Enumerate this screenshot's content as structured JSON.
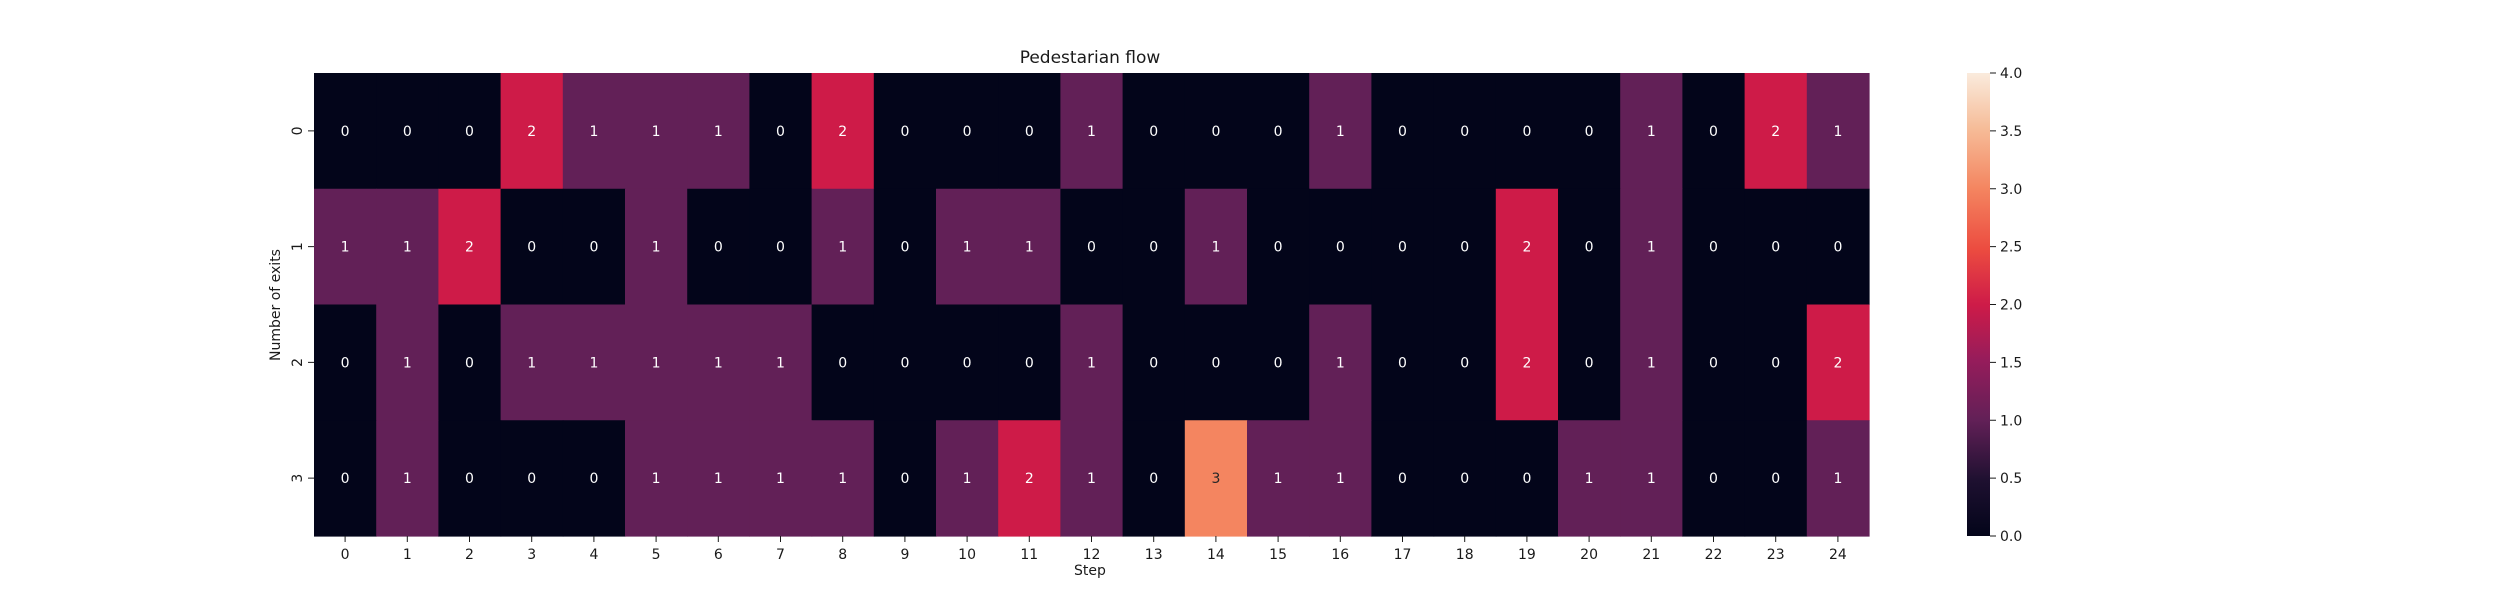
{
  "chart_data": {
    "type": "heatmap",
    "title": "Pedestarian flow",
    "xlabel": "Step",
    "ylabel": "Number of exits",
    "x_tick_labels": [
      "0",
      "1",
      "2",
      "3",
      "4",
      "5",
      "6",
      "7",
      "8",
      "9",
      "10",
      "11",
      "12",
      "13",
      "14",
      "15",
      "16",
      "17",
      "18",
      "19",
      "20",
      "21",
      "22",
      "23",
      "24"
    ],
    "y_tick_labels": [
      "0",
      "1",
      "2",
      "3"
    ],
    "values": [
      [
        0,
        0,
        0,
        2,
        1,
        1,
        1,
        0,
        2,
        0,
        0,
        0,
        1,
        0,
        0,
        0,
        1,
        0,
        0,
        0,
        0,
        1,
        0,
        2,
        1
      ],
      [
        1,
        1,
        2,
        0,
        0,
        1,
        0,
        0,
        1,
        0,
        1,
        1,
        0,
        0,
        1,
        0,
        0,
        0,
        0,
        2,
        0,
        1,
        0,
        0,
        0
      ],
      [
        0,
        1,
        0,
        1,
        1,
        1,
        1,
        1,
        0,
        0,
        0,
        0,
        1,
        0,
        0,
        0,
        1,
        0,
        0,
        2,
        0,
        1,
        0,
        0,
        2
      ],
      [
        0,
        1,
        0,
        0,
        0,
        1,
        1,
        1,
        1,
        0,
        1,
        2,
        1,
        0,
        3,
        1,
        1,
        0,
        0,
        0,
        1,
        1,
        0,
        0,
        1
      ]
    ],
    "color_range": [
      0,
      4
    ],
    "colorbar_ticks": [
      "0.0",
      "0.5",
      "1.0",
      "1.5",
      "2.0",
      "2.5",
      "3.0",
      "3.5",
      "4.0"
    ],
    "colormap": "rocket",
    "annotated": true,
    "grid": false
  }
}
